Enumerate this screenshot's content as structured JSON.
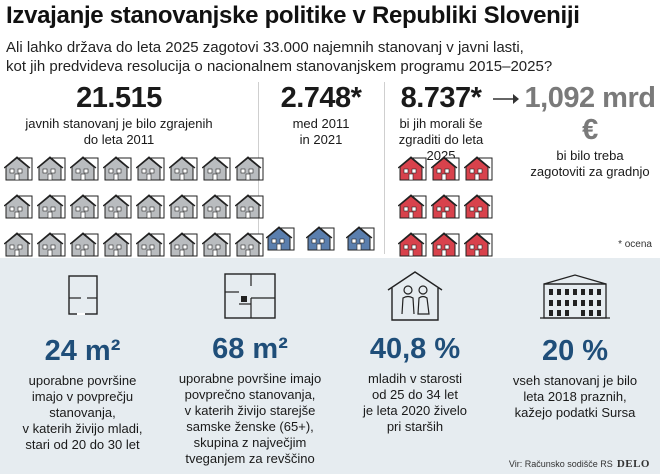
{
  "header": {
    "title": "Izvajanje stanovanjske politike v Republiki Sloveniji",
    "subtitle_line1": "Ali lahko država do leta 2025 zagotovi 33.000 najemnih stanovanj v javni lasti,",
    "subtitle_line2": "kot jih predvideva resolucija o nacionalnem stanovanjskem programu 2015–2025?"
  },
  "stats": [
    {
      "value": "21.515",
      "line1": "javnih stanovanj je bilo zgrajenih",
      "line2": "do leta 2011",
      "houses": 24,
      "color": "#b9bcbf"
    },
    {
      "value": "2.748*",
      "line1": "med 2011",
      "line2": "in 2021",
      "houses": 3,
      "color": "#5b7fae"
    },
    {
      "value": "8.737*",
      "line1": "bi jih morali še",
      "line2": "zgraditi do leta 2025",
      "houses": 9,
      "color": "#d8424c"
    },
    {
      "value": "1,092 mrd €",
      "line1": "bi bilo treba",
      "line2": "zagotoviti za gradnjo"
    }
  ],
  "note": "* ocena",
  "facts": [
    {
      "value": "24 m²",
      "lines": [
        "uporabne površine",
        "imajo v povprečju",
        "stanovanja,",
        "v katerih živijo mladi,",
        "stari od 20 do 30 let"
      ],
      "icon": "small-floorplan-icon"
    },
    {
      "value": "68 m²",
      "lines": [
        "uporabne površine imajo",
        "povprečno stanovanja,",
        "v katerih živijo starejše",
        "samske ženske (65+),",
        "skupina z največjim",
        "tveganjem za revščino"
      ],
      "icon": "large-floorplan-icon"
    },
    {
      "value": "40,8 %",
      "lines": [
        "mladih v starosti",
        "od 25 do 34 let",
        "je leta 2020 živelo",
        "pri starših"
      ],
      "icon": "couple-in-house-icon"
    },
    {
      "value": "20 %",
      "lines": [
        "vseh stanovanj je bilo",
        "leta 2018 praznih,",
        "kažejo podatki Sursa"
      ],
      "icon": "apartment-building-icon"
    }
  ],
  "footer": {
    "source": "Vir: Računsko sodišče RS",
    "brand": "DELO"
  }
}
